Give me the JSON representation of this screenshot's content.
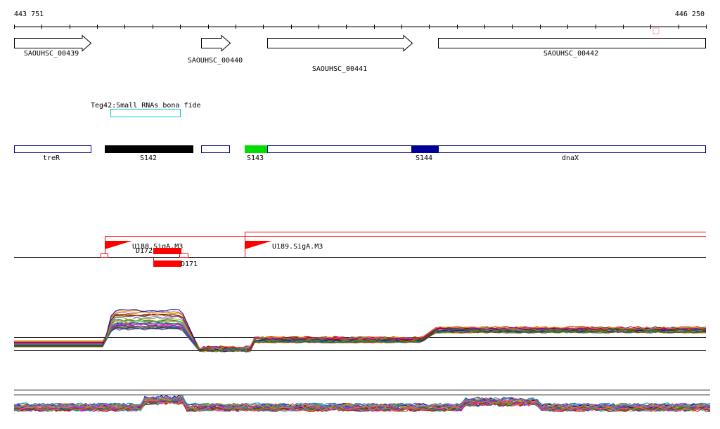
{
  "axis": {
    "start_label": "443 751",
    "end_label": "446 250",
    "start": 443751,
    "end": 446250
  },
  "genes": [
    {
      "label": "SAOUHSC_00439",
      "start": 443751,
      "end": 444035,
      "strand": "+"
    },
    {
      "label": "SAOUHSC_00440",
      "start": 444428,
      "end": 444534,
      "strand": "+"
    },
    {
      "label": "SAOUHSC_00441",
      "start": 444578,
      "end": 445107,
      "strand": "+"
    },
    {
      "label": "SAOUHSC_00442",
      "start": 445208,
      "end": 446250,
      "strand": "none"
    }
  ],
  "srna": {
    "label": "Teg42:Small RNAs bona fide",
    "start": 444100,
    "end": 444354,
    "color": "#00cccc"
  },
  "features": [
    {
      "label": "treR",
      "start": 443751,
      "end": 444030,
      "fill": "none",
      "color": "#000080"
    },
    {
      "label": "S142",
      "start": 444080,
      "end": 444400,
      "fill": "#000000",
      "color": "#000000"
    },
    {
      "label": "",
      "start": 444418,
      "end": 444520,
      "fill": "none",
      "color": "#000080"
    },
    {
      "label": "S143",
      "start": 444570,
      "end": 444652,
      "fill": "#00dd00",
      "color": "#00aa00"
    },
    {
      "label": "",
      "start": 444652,
      "end": 445107,
      "fill": "none",
      "color": "#000080"
    },
    {
      "label": "S144",
      "start": 445107,
      "end": 445205,
      "fill": "#000099",
      "color": "#000099"
    },
    {
      "label": "dnaX",
      "start": 445205,
      "end": 446250,
      "fill": "none",
      "color": "#000080"
    }
  ],
  "promoters": [
    {
      "label": "U188.SigA.M3",
      "position": 444080
    },
    {
      "label": "U189.SigA.M3",
      "position": 444570
    }
  ],
  "terminators": [
    {
      "label": "D172",
      "start": 444185,
      "end": 444285
    },
    {
      "label": "D171",
      "start": 444185,
      "end": 444285
    }
  ],
  "colors": {
    "accent": "#ff0000",
    "srna": "#00cccc",
    "feature_outline": "#000080",
    "s143": "#00dd00",
    "s144": "#000099",
    "s142": "#000000"
  }
}
